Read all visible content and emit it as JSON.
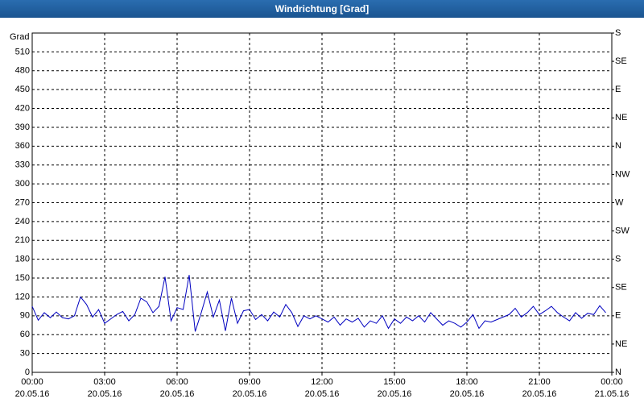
{
  "window_title": "Windrichtung [Grad]",
  "chart_data": {
    "type": "line",
    "y_label": "Grad",
    "x": [
      0,
      0.25,
      0.5,
      0.75,
      1,
      1.25,
      1.5,
      1.75,
      2,
      2.25,
      2.5,
      2.75,
      3,
      3.25,
      3.5,
      3.75,
      4,
      4.25,
      4.5,
      4.75,
      5,
      5.25,
      5.5,
      5.75,
      6,
      6.25,
      6.5,
      6.75,
      7,
      7.25,
      7.5,
      7.75,
      8,
      8.25,
      8.5,
      8.75,
      9,
      9.25,
      9.5,
      9.75,
      10,
      10.25,
      10.5,
      10.75,
      11,
      11.25,
      11.5,
      11.75,
      12,
      12.25,
      12.5,
      12.75,
      13,
      13.25,
      13.5,
      13.75,
      14,
      14.25,
      14.5,
      14.75,
      15,
      15.25,
      15.5,
      15.75,
      16,
      16.25,
      16.5,
      16.75,
      17,
      17.25,
      17.5,
      17.75,
      18,
      18.25,
      18.5,
      18.75,
      19,
      19.25,
      19.5,
      19.75,
      20,
      20.25,
      20.5,
      20.75,
      21,
      21.25,
      21.5,
      21.75,
      22,
      22.25,
      22.5,
      22.75,
      23,
      23.25,
      23.5,
      23.75
    ],
    "series": [
      {
        "color": "#0000c0",
        "values": [
          105,
          83,
          95,
          87,
          96,
          87,
          85,
          90,
          120,
          108,
          88,
          100,
          78,
          85,
          92,
          97,
          82,
          92,
          118,
          112,
          95,
          105,
          152,
          82,
          103,
          100,
          155,
          65,
          95,
          128,
          88,
          115,
          66,
          118,
          78,
          98,
          100,
          84,
          92,
          82,
          96,
          88,
          108,
          95,
          73,
          90,
          85,
          90,
          85,
          80,
          88,
          75,
          85,
          80,
          86,
          72,
          82,
          78,
          90,
          70,
          85,
          78,
          88,
          82,
          90,
          80,
          95,
          85,
          75,
          82,
          78,
          72,
          80,
          92,
          70,
          82,
          80,
          84,
          88,
          92,
          102,
          88,
          95,
          105,
          92,
          98,
          105,
          95,
          88,
          82,
          95,
          86,
          94,
          92,
          106,
          95
        ]
      }
    ],
    "xlim": [
      0,
      24
    ],
    "xticks": [
      {
        "value": 0,
        "label": "00:00",
        "date": "20.05.16"
      },
      {
        "value": 3,
        "label": "03:00",
        "date": "20.05.16"
      },
      {
        "value": 6,
        "label": "06:00",
        "date": "20.05.16"
      },
      {
        "value": 9,
        "label": "09:00",
        "date": "20.05.16"
      },
      {
        "value": 12,
        "label": "12:00",
        "date": "20.05.16"
      },
      {
        "value": 15,
        "label": "15:00",
        "date": "20.05.16"
      },
      {
        "value": 18,
        "label": "18:00",
        "date": "20.05.16"
      },
      {
        "value": 21,
        "label": "21:00",
        "date": "20.05.16"
      },
      {
        "value": 24,
        "label": "00:00",
        "date": "21.05.16"
      }
    ],
    "ylim": [
      0,
      540
    ],
    "yticks": [
      0,
      30,
      60,
      90,
      120,
      150,
      180,
      210,
      240,
      270,
      300,
      330,
      360,
      390,
      420,
      450,
      480,
      510
    ],
    "y2lim": [
      0,
      540
    ],
    "y2ticks": [
      {
        "value": 0,
        "label": "N"
      },
      {
        "value": 45,
        "label": "NE"
      },
      {
        "value": 90,
        "label": "E"
      },
      {
        "value": 135,
        "label": "SE"
      },
      {
        "value": 180,
        "label": "S"
      },
      {
        "value": 225,
        "label": "SW"
      },
      {
        "value": 270,
        "label": "W"
      },
      {
        "value": 315,
        "label": "NW"
      },
      {
        "value": 360,
        "label": "N"
      },
      {
        "value": 405,
        "label": "NE"
      },
      {
        "value": 450,
        "label": "E"
      },
      {
        "value": 495,
        "label": "SE"
      },
      {
        "value": 540,
        "label": "S"
      }
    ],
    "grid": true
  }
}
